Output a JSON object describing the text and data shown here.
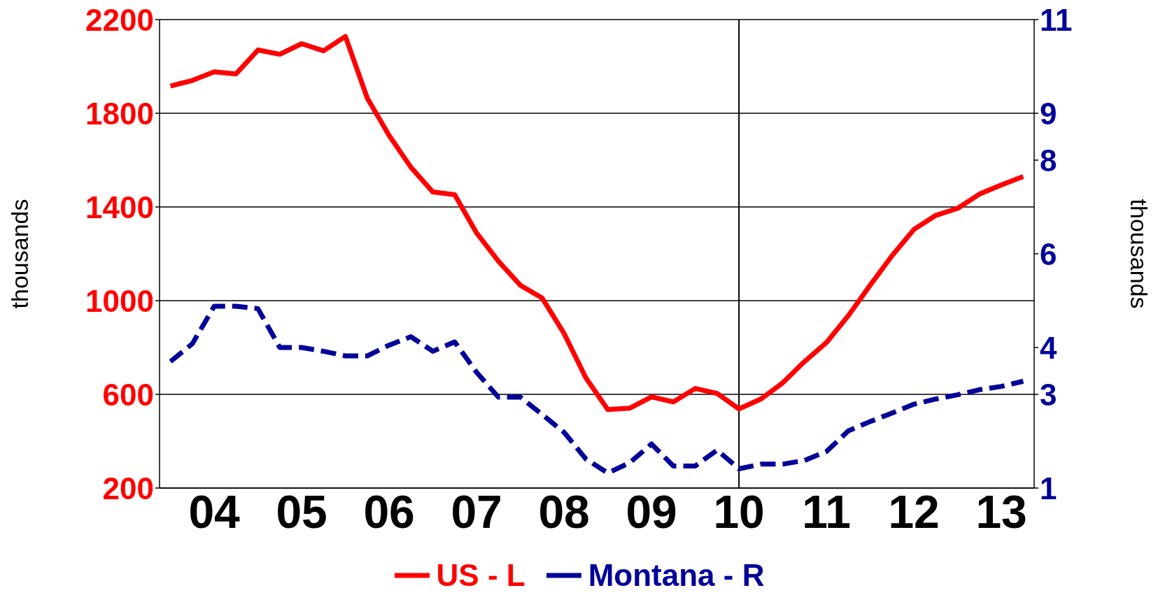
{
  "chart_data": {
    "type": "line",
    "ylabel": "thousands",
    "y2label": "thousands",
    "categories": [
      null,
      null,
      "04",
      null,
      null,
      null,
      "05",
      null,
      null,
      null,
      "06",
      null,
      null,
      null,
      "07",
      null,
      null,
      null,
      "08",
      null,
      null,
      null,
      "09",
      null,
      null,
      null,
      "10",
      null,
      null,
      null,
      "11",
      null,
      null,
      null,
      "12",
      null,
      null,
      null,
      "13",
      null
    ],
    "ylim": [
      200,
      2200
    ],
    "yticks": [
      200,
      600,
      1000,
      1400,
      1800,
      2200
    ],
    "y2lim": [
      1,
      11
    ],
    "y2ticks": [
      1,
      3,
      4,
      6,
      8,
      9,
      11
    ],
    "grid": "y",
    "legend": "bottom",
    "ref_lines": [
      {
        "axis": "x",
        "value": "10",
        "color": "#000000"
      }
    ],
    "series": [
      {
        "name": "US - L",
        "color": "#ff0000",
        "line_style": "solid",
        "values": [
          1916,
          1940,
          1977,
          1968,
          2070,
          2052,
          2097,
          2067,
          2128,
          1865,
          1705,
          1569,
          1464,
          1452,
          1289,
          1168,
          1066,
          1011,
          860,
          670,
          535,
          541,
          589,
          568,
          625,
          604,
          538,
          580,
          649,
          740,
          821,
          936,
          1066,
          1192,
          1304,
          1364,
          1394,
          1455,
          1494,
          1530
        ]
      },
      {
        "name": "Montana - R",
        "color": "#000099",
        "axis": "y2",
        "line_style": "dashed",
        "values": [
          3.7,
          4.08,
          4.88,
          4.88,
          4.83,
          4.0,
          4.0,
          3.92,
          3.82,
          3.82,
          4.05,
          4.23,
          3.92,
          4.12,
          3.47,
          2.94,
          2.94,
          2.57,
          2.19,
          1.62,
          1.32,
          1.54,
          1.94,
          1.47,
          1.47,
          1.81,
          1.41,
          1.51,
          1.51,
          1.59,
          1.78,
          2.22,
          2.42,
          2.6,
          2.79,
          2.9,
          2.99,
          3.1,
          3.17,
          3.28
        ]
      }
    ]
  }
}
